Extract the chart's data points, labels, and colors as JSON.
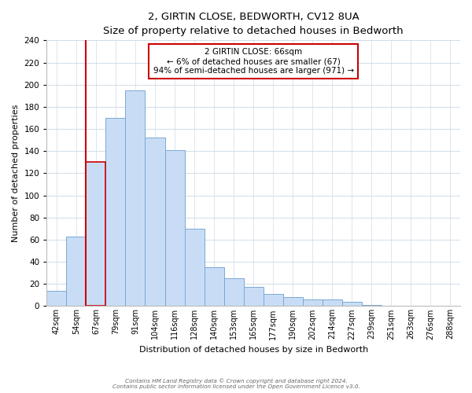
{
  "title": "2, GIRTIN CLOSE, BEDWORTH, CV12 8UA",
  "subtitle": "Size of property relative to detached houses in Bedworth",
  "xlabel": "Distribution of detached houses by size in Bedworth",
  "ylabel": "Number of detached properties",
  "bar_labels": [
    "42sqm",
    "54sqm",
    "67sqm",
    "79sqm",
    "91sqm",
    "104sqm",
    "116sqm",
    "128sqm",
    "140sqm",
    "153sqm",
    "165sqm",
    "177sqm",
    "190sqm",
    "202sqm",
    "214sqm",
    "227sqm",
    "239sqm",
    "251sqm",
    "263sqm",
    "276sqm",
    "288sqm"
  ],
  "bar_values": [
    14,
    63,
    130,
    170,
    195,
    152,
    141,
    70,
    35,
    25,
    17,
    11,
    8,
    6,
    6,
    4,
    1,
    0,
    0,
    0,
    0
  ],
  "highlight_bar_index": 2,
  "bar_color": "#c8ddf5",
  "bar_edge_color": "#7aa8d4",
  "highlight_edge_color": "#cc0000",
  "ylim": [
    0,
    240
  ],
  "yticks": [
    0,
    20,
    40,
    60,
    80,
    100,
    120,
    140,
    160,
    180,
    200,
    220,
    240
  ],
  "annotation_title": "2 GIRTIN CLOSE: 66sqm",
  "annotation_line1": "← 6% of detached houses are smaller (67)",
  "annotation_line2": "94% of semi-detached houses are larger (971) →",
  "annotation_box_color": "#ffffff",
  "annotation_box_edge": "#cc0000",
  "vline_color": "#cc0000",
  "grid_color": "#d0dce8",
  "footer1": "Contains HM Land Registry data © Crown copyright and database right 2024.",
  "footer2": "Contains public sector information licensed under the Open Government Licence v3.0."
}
